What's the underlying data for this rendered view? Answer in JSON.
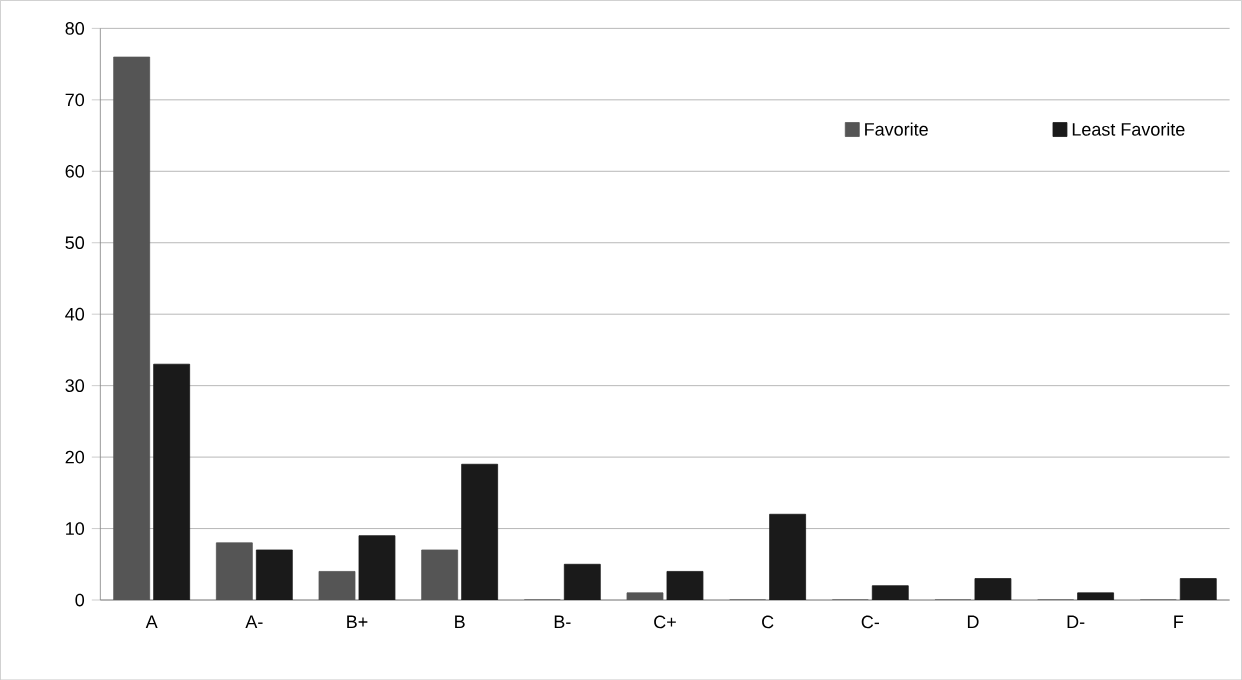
{
  "chart_data": {
    "type": "bar",
    "categories": [
      "A",
      "A-",
      "B+",
      "B",
      "B-",
      "C+",
      "C",
      "C-",
      "D",
      "D-",
      "F"
    ],
    "series": [
      {
        "name": "Favorite",
        "color": "#555555",
        "values": [
          76,
          8,
          4,
          7,
          0,
          1,
          0,
          0,
          0,
          0,
          0
        ]
      },
      {
        "name": "Least Favorite",
        "color": "#1a1a1a",
        "values": [
          33,
          7,
          9,
          19,
          5,
          4,
          12,
          2,
          3,
          1,
          3
        ]
      }
    ],
    "ylim": [
      0,
      80
    ],
    "yticks": [
      0,
      10,
      20,
      30,
      40,
      50,
      60,
      70,
      80
    ],
    "grid": "y",
    "legend": "top right"
  }
}
